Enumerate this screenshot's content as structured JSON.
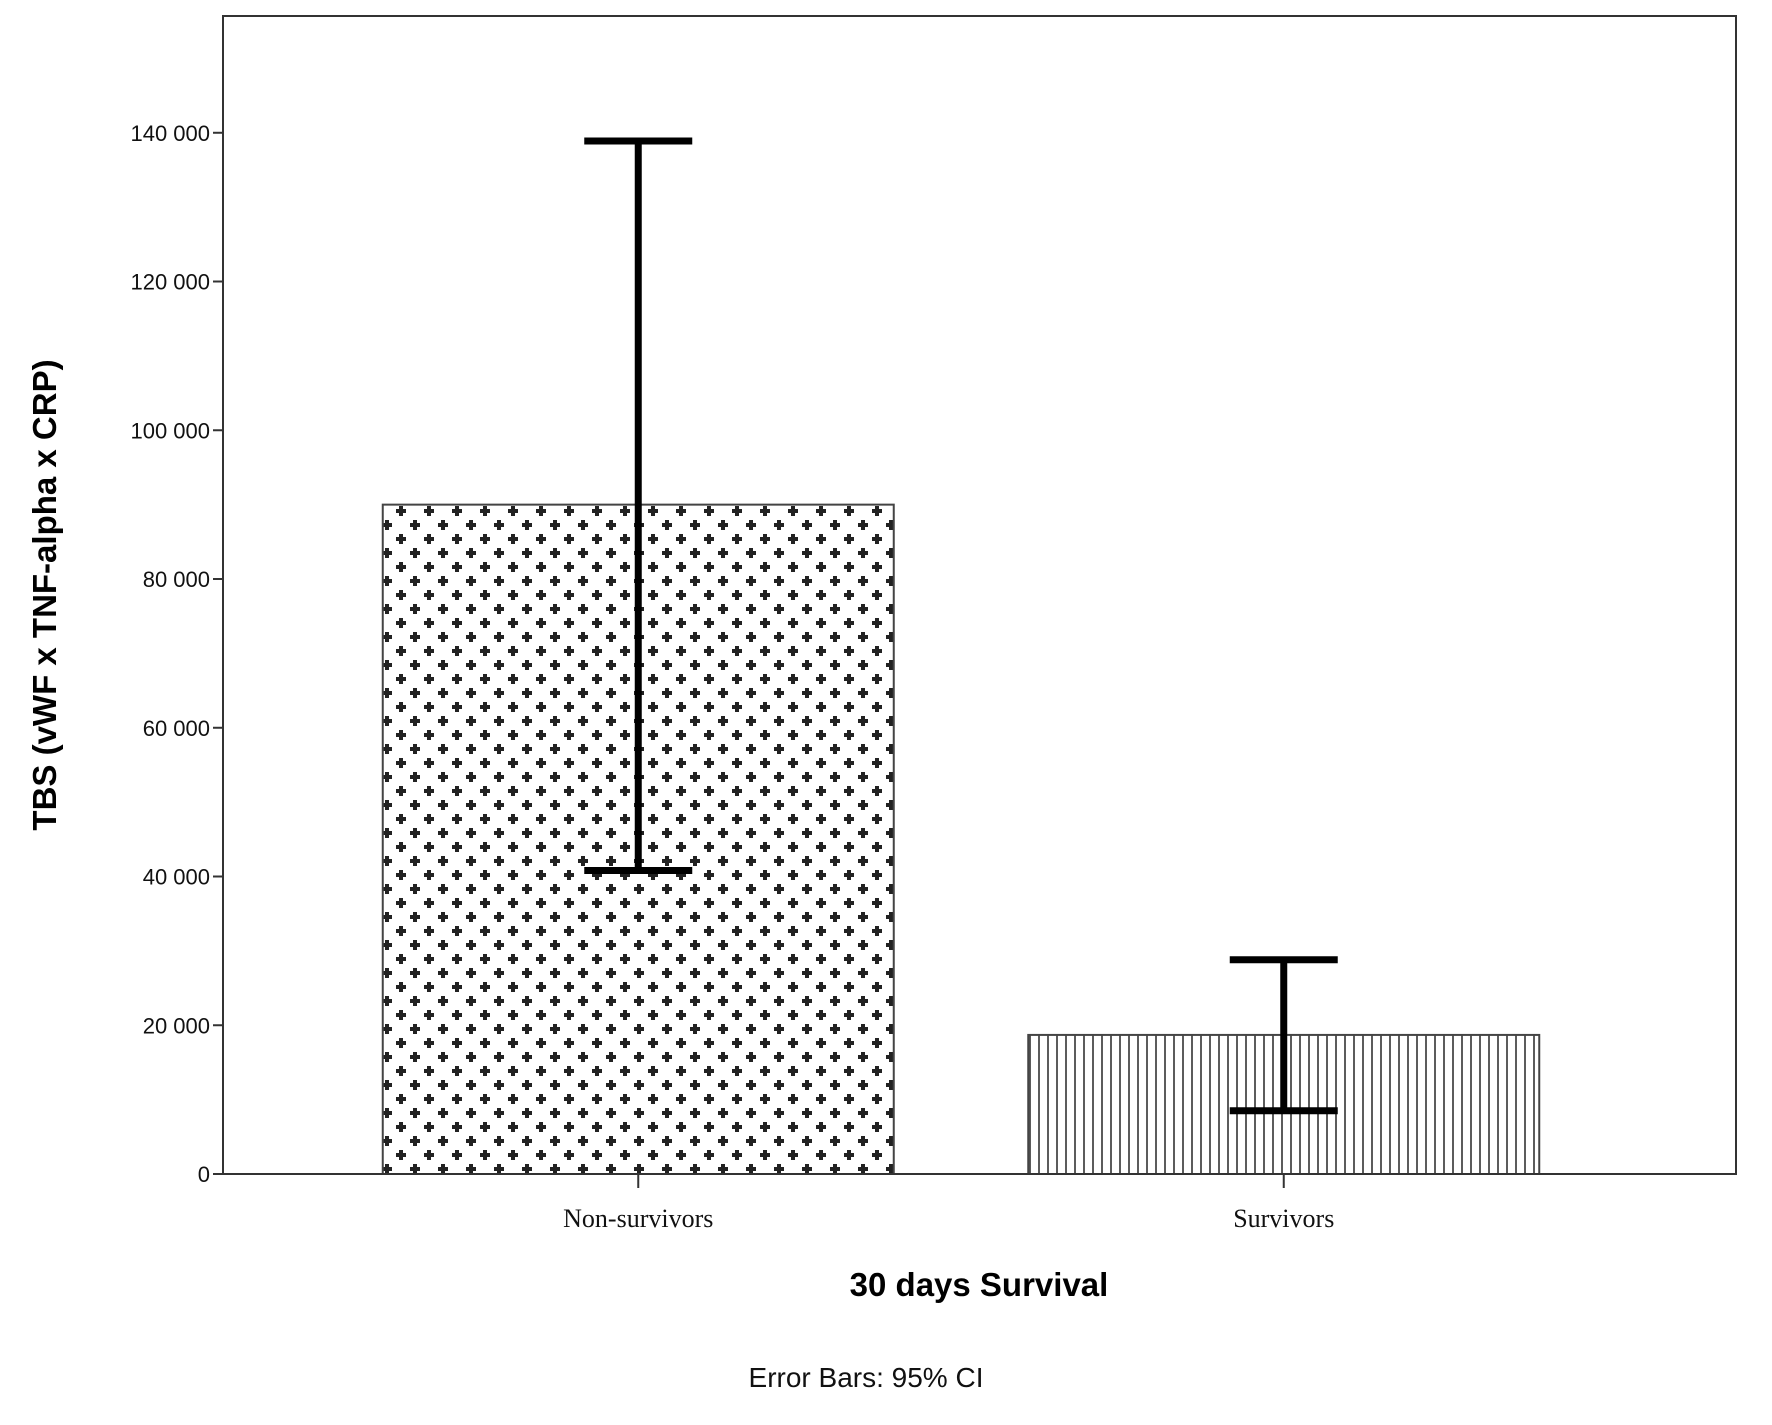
{
  "chart_data": {
    "type": "bar",
    "title": "",
    "xlabel": "30 days Survival",
    "ylabel": "TBS (vWF x TNF-alpha x CRP)",
    "categories": [
      "Non-survivors",
      "Survivors"
    ],
    "values": [
      90000,
      18700
    ],
    "error_bars": {
      "type": "95% CI",
      "lower": [
        40800,
        8500
      ],
      "upper": [
        138900,
        28800
      ]
    },
    "fill_patterns": [
      "crosses",
      "vertical-lines"
    ],
    "ylim": [
      0,
      155700
    ],
    "yticks": [
      0,
      20000,
      40000,
      60000,
      80000,
      100000,
      120000,
      140000
    ],
    "ytick_labels": [
      "0",
      "20 000",
      "40 000",
      "60 000",
      "80 000",
      "100 000",
      "120 000",
      "140 000"
    ],
    "grid": false,
    "note": "Error Bars: 95% CI"
  }
}
